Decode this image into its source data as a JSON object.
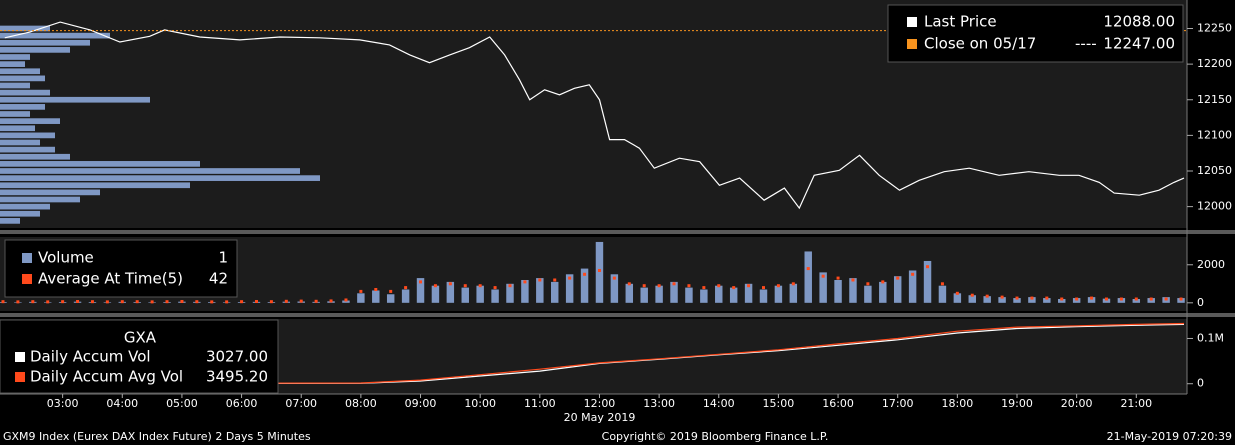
{
  "chart_data": [
    {
      "type": "line",
      "xlim": [
        1.95,
        21.85
      ],
      "ylim": [
        11970,
        12290
      ],
      "yticks": [
        12000,
        12050,
        12100,
        12150,
        12200,
        12250
      ],
      "x": [
        2.03,
        2.45,
        2.96,
        3.46,
        3.96,
        4.46,
        4.71,
        5.3,
        5.97,
        6.64,
        7.31,
        7.98,
        8.48,
        8.82,
        9.15,
        9.49,
        9.82,
        10.16,
        10.41,
        10.66,
        10.83,
        11.08,
        11.33,
        11.58,
        11.83,
        12.0,
        12.17,
        12.42,
        12.67,
        12.92,
        13.34,
        13.68,
        14.01,
        14.35,
        14.76,
        15.1,
        15.35,
        15.6,
        16.02,
        16.36,
        16.69,
        17.03,
        17.36,
        17.78,
        18.2,
        18.7,
        19.2,
        19.71,
        20.04,
        20.38,
        20.63,
        21.05,
        21.38,
        21.63,
        21.8
      ],
      "series": [
        {
          "name": "Last Price",
          "color": "#ffffff",
          "legend_value": "12088.00",
          "values": [
            12237,
            12245,
            12259,
            12248,
            12231,
            12239,
            12248,
            12238,
            12234,
            12238,
            12237,
            12234,
            12227,
            12213,
            12202,
            12213,
            12223,
            12238,
            12213,
            12178,
            12150,
            12164,
            12157,
            12166,
            12171,
            12150,
            12094,
            12094,
            12082,
            12054,
            12068,
            12063,
            12030,
            12040,
            12009,
            12026,
            11998,
            12044,
            12051,
            12072,
            12044,
            12023,
            12037,
            12049,
            12054,
            12044,
            12049,
            12044,
            12044,
            12034,
            12019,
            12016,
            12023,
            12034,
            12040
          ]
        },
        {
          "name": "Close on 05/17",
          "color": "#f7931e",
          "value": 12247,
          "dash": "----",
          "legend_value": "12247.00"
        }
      ],
      "profile": {
        "color": "#7f98c4",
        "prices": [
          12250,
          12240,
          12230,
          12220,
          12210,
          12200,
          12190,
          12180,
          12170,
          12160,
          12150,
          12140,
          12130,
          12120,
          12110,
          12100,
          12090,
          12080,
          12070,
          12060,
          12050,
          12040,
          12030,
          12020,
          12010,
          12000,
          11990,
          11980
        ],
        "values": [
          50,
          110,
          90,
          70,
          30,
          25,
          40,
          45,
          30,
          50,
          150,
          45,
          30,
          60,
          35,
          55,
          40,
          55,
          70,
          200,
          300,
          320,
          190,
          100,
          80,
          50,
          40,
          20
        ]
      }
    },
    {
      "type": "bar",
      "xlim": [
        1.95,
        21.85
      ],
      "ylim": [
        -430,
        3460
      ],
      "yticks": [
        0,
        2000
      ],
      "x": [
        2.0,
        2.25,
        2.5,
        2.75,
        3.0,
        3.25,
        3.5,
        3.75,
        4.0,
        4.25,
        4.5,
        4.75,
        5.0,
        5.25,
        5.5,
        5.75,
        6.0,
        6.25,
        6.5,
        6.75,
        7.0,
        7.25,
        7.5,
        7.75,
        8.0,
        8.25,
        8.5,
        8.75,
        9.0,
        9.25,
        9.5,
        9.75,
        10.0,
        10.25,
        10.5,
        10.75,
        11.0,
        11.25,
        11.5,
        11.75,
        12.0,
        12.25,
        12.5,
        12.75,
        13.0,
        13.25,
        13.5,
        13.75,
        14.0,
        14.25,
        14.5,
        14.75,
        15.0,
        15.25,
        15.5,
        15.75,
        16.0,
        16.25,
        16.5,
        16.75,
        17.0,
        17.25,
        17.5,
        17.75,
        18.0,
        18.25,
        18.5,
        18.75,
        19.0,
        19.25,
        19.5,
        19.75,
        20.0,
        20.25,
        20.5,
        20.75,
        21.0,
        21.25,
        21.5,
        21.75
      ],
      "series": [
        {
          "name": "Volume",
          "color": "#7f98c4",
          "legend_value": "1",
          "values": [
            40,
            30,
            50,
            30,
            40,
            60,
            40,
            30,
            50,
            40,
            30,
            40,
            60,
            50,
            40,
            30,
            40,
            50,
            40,
            60,
            70,
            50,
            80,
            120,
            500,
            650,
            450,
            700,
            1300,
            900,
            1100,
            800,
            900,
            700,
            1000,
            1200,
            1300,
            1100,
            1500,
            1800,
            3200,
            1500,
            1000,
            800,
            900,
            1100,
            800,
            700,
            900,
            800,
            1000,
            700,
            900,
            1000,
            2700,
            1600,
            1200,
            1300,
            900,
            1100,
            1400,
            1700,
            2200,
            900,
            500,
            400,
            350,
            300,
            250,
            300,
            250,
            200,
            250,
            300,
            220,
            250,
            200,
            250,
            300,
            250
          ]
        },
        {
          "name": "Average At Time(5)",
          "color": "#ff4a1c",
          "legend_value": "42",
          "values": [
            60,
            50,
            60,
            50,
            60,
            70,
            60,
            50,
            60,
            60,
            50,
            60,
            70,
            60,
            50,
            50,
            60,
            70,
            60,
            80,
            90,
            80,
            100,
            150,
            600,
            700,
            600,
            800,
            1100,
            900,
            1000,
            900,
            900,
            800,
            900,
            1100,
            1200,
            1200,
            1300,
            1500,
            1700,
            1300,
            1000,
            900,
            900,
            1000,
            900,
            800,
            900,
            800,
            900,
            800,
            900,
            1000,
            1800,
            1400,
            1300,
            1200,
            1000,
            1100,
            1300,
            1500,
            1900,
            1000,
            500,
            400,
            350,
            300,
            250,
            250,
            250,
            200,
            200,
            250,
            200,
            200,
            200,
            200,
            200,
            200
          ]
        }
      ]
    },
    {
      "type": "line",
      "title": "GXA",
      "xlim": [
        1.95,
        21.85
      ],
      "ylim": [
        -22700,
        143000
      ],
      "yticks": [
        0,
        {
          "value": 100000,
          "label": "0.1M"
        }
      ],
      "xticks": [
        {
          "value": 3,
          "label": "03:00"
        },
        {
          "value": 4,
          "label": "04:00"
        },
        {
          "value": 5,
          "label": "05:00"
        },
        {
          "value": 6,
          "label": "06:00"
        },
        {
          "value": 7,
          "label": "07:00"
        },
        {
          "value": 8,
          "label": "08:00"
        },
        {
          "value": 9,
          "label": "09:00"
        },
        {
          "value": 10,
          "label": "10:00"
        },
        {
          "value": 11,
          "label": "11:00"
        },
        {
          "value": 12,
          "label": "12:00"
        },
        {
          "value": 13,
          "label": "13:00"
        },
        {
          "value": 14,
          "label": "14:00"
        },
        {
          "value": 15,
          "label": "15:00"
        },
        {
          "value": 16,
          "label": "16:00"
        },
        {
          "value": 17,
          "label": "17:00"
        },
        {
          "value": 18,
          "label": "18:00"
        },
        {
          "value": 19,
          "label": "19:00"
        },
        {
          "value": 20,
          "label": "20:00"
        },
        {
          "value": 21,
          "label": "21:00"
        }
      ],
      "x_label": "20 May 2019",
      "x": [
        2,
        8,
        9,
        10,
        11,
        12,
        13,
        14,
        15,
        16,
        17,
        18,
        19,
        20,
        21,
        21.8
      ],
      "series": [
        {
          "name": "Daily Accum Vol",
          "color": "#ffffff",
          "legend_value": "3027.00",
          "values": [
            0,
            1000,
            6000,
            17000,
            28000,
            45000,
            54000,
            64000,
            73000,
            85000,
            97000,
            112000,
            122000,
            126000,
            129000,
            131000
          ]
        },
        {
          "name": "Daily Accum Avg Vol",
          "color": "#ff4a1c",
          "legend_value": "3495.20",
          "values": [
            0,
            1500,
            8000,
            20000,
            32000,
            46000,
            55000,
            65000,
            75000,
            88000,
            100000,
            116000,
            125000,
            128000,
            131000,
            133000
          ]
        }
      ]
    }
  ],
  "footer": {
    "left": "GXM9 Index (Eurex DAX Index Future) 2 Days 5 Minutes",
    "center": "Copyright© 2019 Bloomberg Finance L.P.",
    "right": "21-May-2019 07:20:39"
  }
}
